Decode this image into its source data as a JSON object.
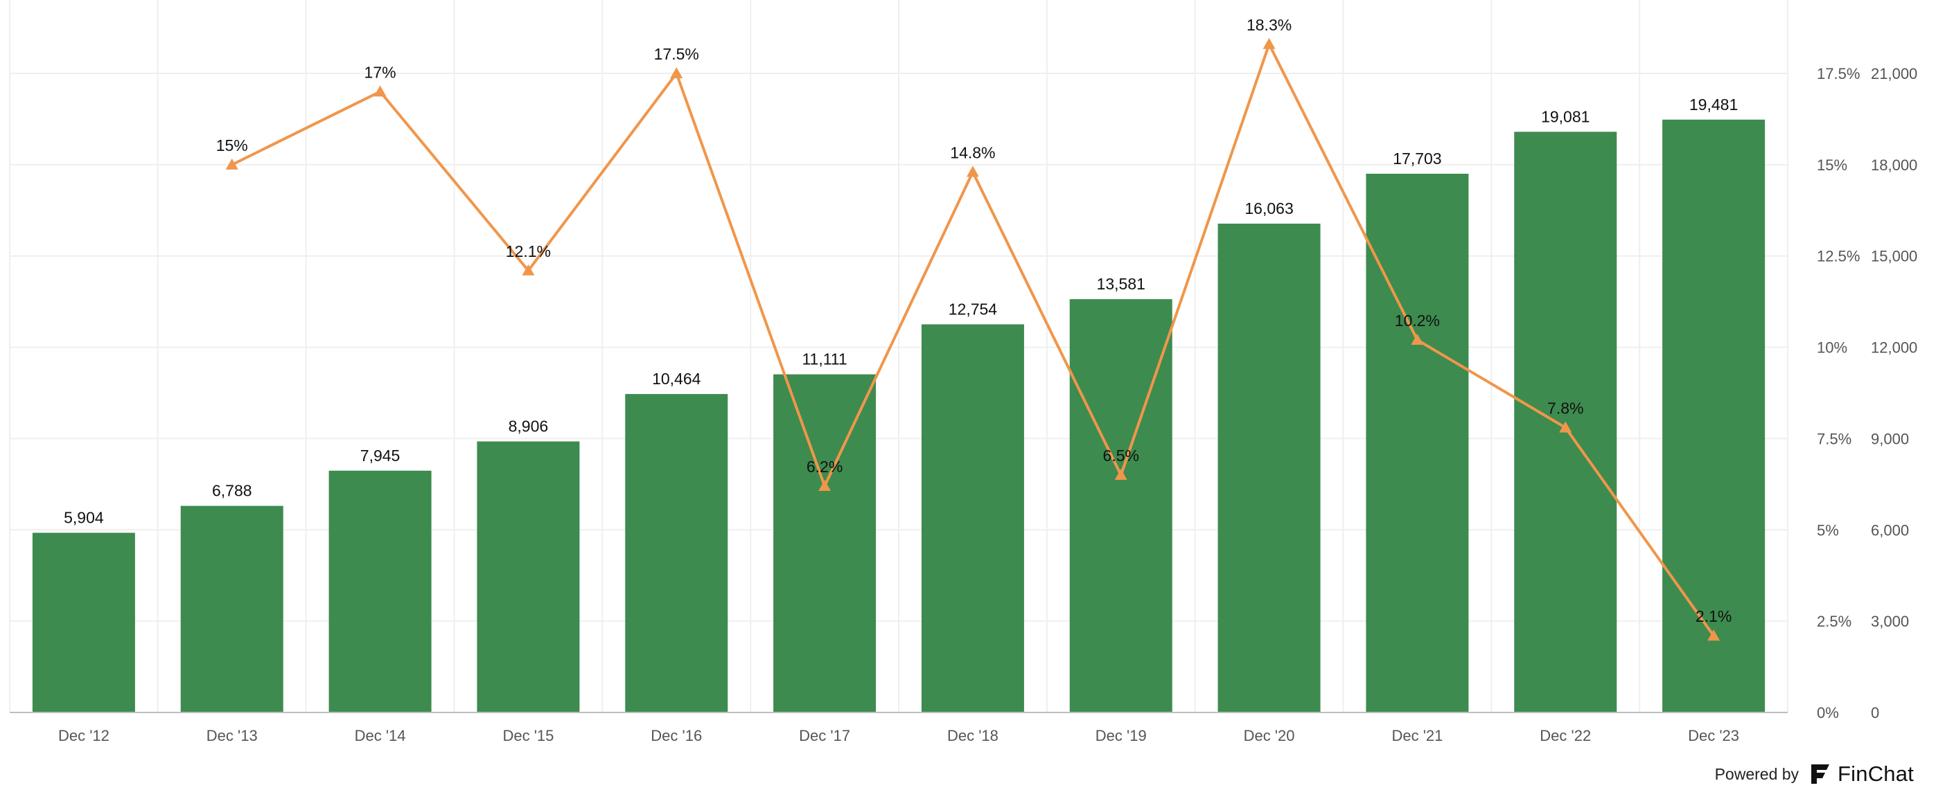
{
  "chart_data": {
    "type": "bar",
    "categories": [
      "Dec '12",
      "Dec '13",
      "Dec '14",
      "Dec '15",
      "Dec '16",
      "Dec '17",
      "Dec '18",
      "Dec '19",
      "Dec '20",
      "Dec '21",
      "Dec '22",
      "Dec '23"
    ],
    "series": [
      {
        "type": "bar",
        "axis": "right",
        "values": [
          5904,
          6788,
          7945,
          8906,
          10464,
          11111,
          12754,
          13581,
          16063,
          17703,
          19081,
          19481
        ],
        "labels": [
          "5,904",
          "6,788",
          "7,945",
          "8,906",
          "10,464",
          "11,111",
          "12,754",
          "13,581",
          "16,063",
          "17,703",
          "19,081",
          "19,481"
        ]
      },
      {
        "type": "line",
        "axis": "left",
        "values": [
          null,
          15,
          17,
          12.1,
          17.5,
          6.2,
          14.8,
          6.5,
          18.3,
          10.2,
          7.8,
          2.1
        ],
        "labels": [
          "",
          "15%",
          "17%",
          "12.1%",
          "17.5%",
          "6.2%",
          "14.8%",
          "6.5%",
          "18.3%",
          "10.2%",
          "7.8%",
          "2.1%"
        ]
      }
    ],
    "y_pct_axis": {
      "min": 0,
      "max": 17.5,
      "ticks": [
        "0%",
        "2.5%",
        "5%",
        "7.5%",
        "10%",
        "12.5%",
        "15%",
        "17.5%"
      ]
    },
    "y_val_axis": {
      "min": 0,
      "max": 21000,
      "ticks": [
        "0",
        "3,000",
        "6,000",
        "9,000",
        "12,000",
        "15,000",
        "18,000",
        "21,000"
      ]
    },
    "grid": true,
    "colors": {
      "bar": "#3d8b4f",
      "line": "#f0964b",
      "grid": "#efefef",
      "text": "#111111",
      "axis_text": "#555555"
    }
  },
  "footer": {
    "powered_by": "Powered by",
    "brand": "FinChat",
    "logo_icon": "finchat-logo-icon"
  }
}
